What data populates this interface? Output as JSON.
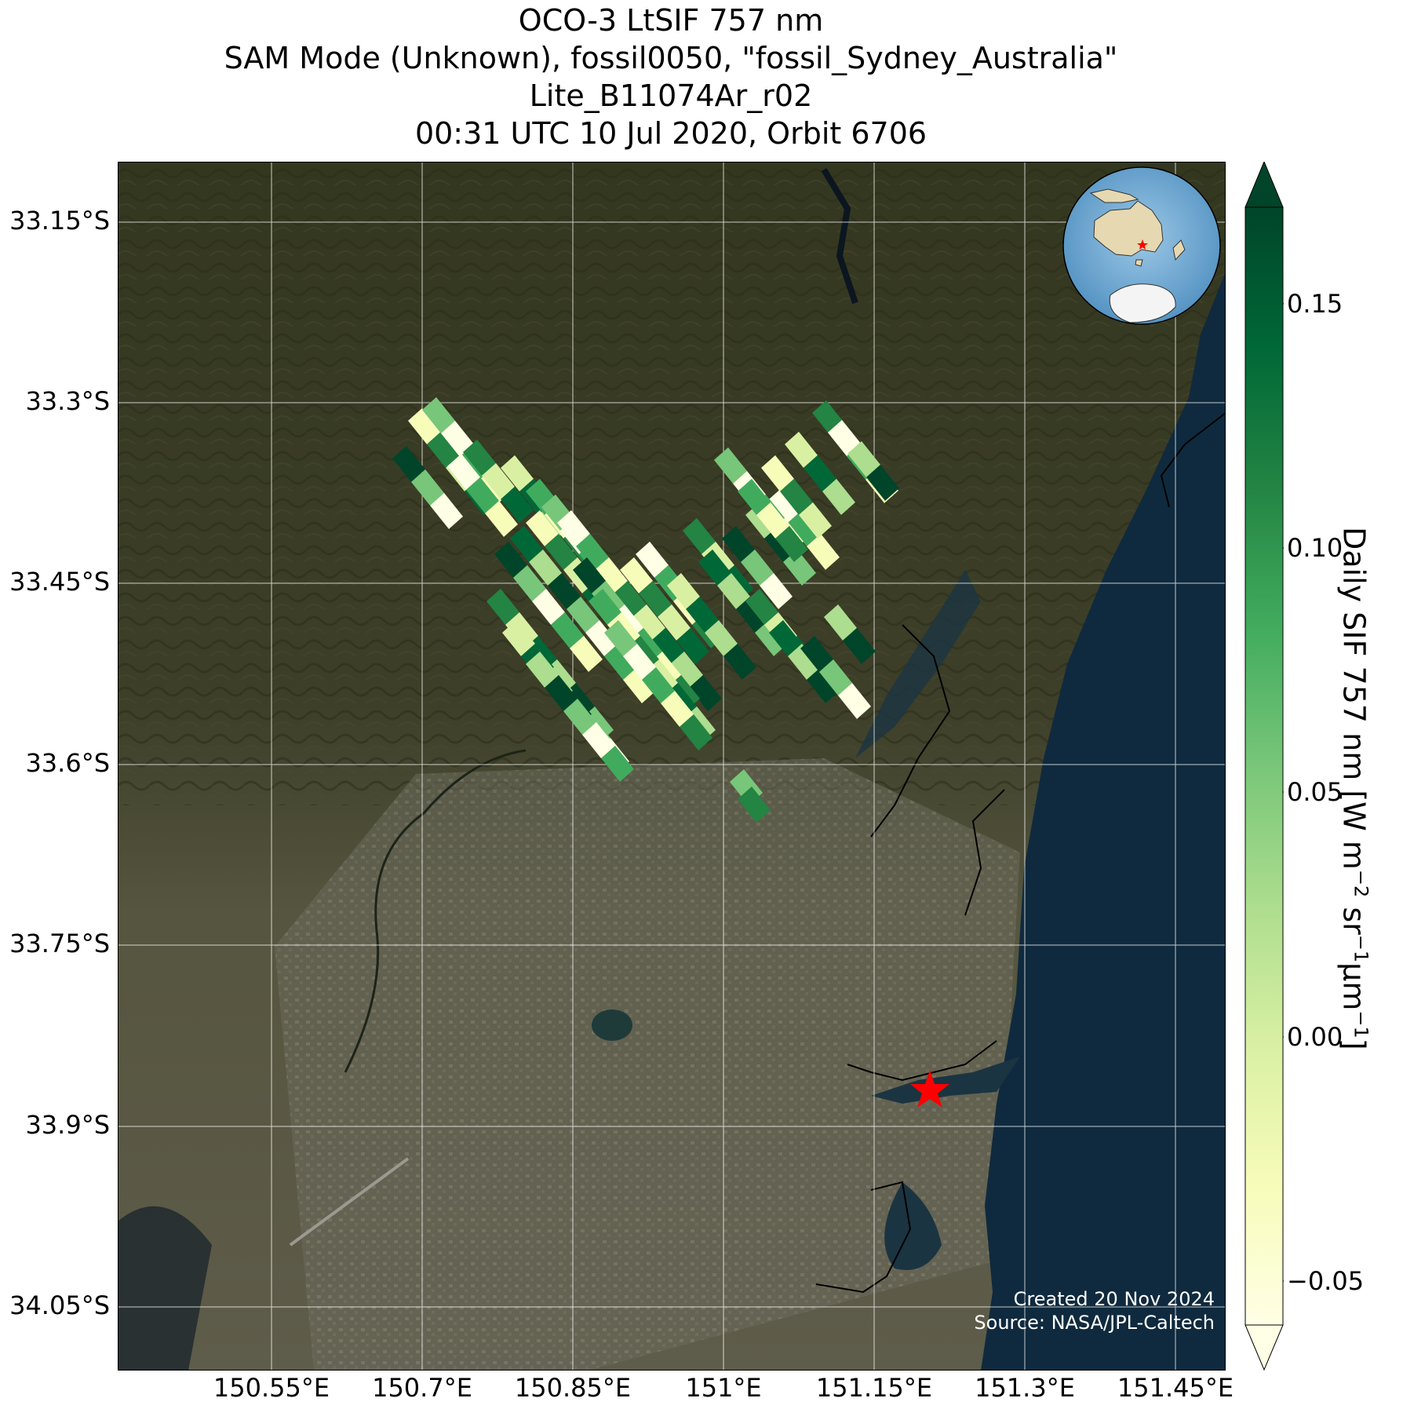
{
  "title": {
    "line1": "OCO-3 LtSIF 757 nm",
    "line2": "SAM Mode (Unknown), fossil0050, \"fossil_Sydney_Australia\"",
    "line3": "Lite_B11074Ar_r02",
    "line4": "00:31 UTC 10 Jul 2020, Orbit 6706"
  },
  "axes": {
    "lat_ticks": [
      "33.15°S",
      "33.3°S",
      "33.45°S",
      "33.6°S",
      "33.75°S",
      "33.9°S",
      "34.05°S"
    ],
    "lon_ticks": [
      "150.55°E",
      "150.7°E",
      "150.85°E",
      "151°E",
      "151.15°E",
      "151.3°E",
      "151.45°E"
    ]
  },
  "colorbar": {
    "ticks": [
      "0.15",
      "0.10",
      "0.05",
      "0.00",
      "−0.05"
    ],
    "label_main": "Daily SIF 757 nm [W m",
    "label_sup1": "−2",
    "label_mid1": " sr",
    "label_sup2": "−1",
    "label_mid2": "µm",
    "label_sup3": "−1",
    "label_end": "]",
    "colormap": "YlGn",
    "range": [
      -0.06,
      0.165
    ]
  },
  "credits": {
    "created": "Created 20 Nov 2024",
    "source": "Source: NASA/JPL-Caltech"
  },
  "map": {
    "basemap": "satellite imagery",
    "target_marker": "red-star",
    "inset": "orthographic globe centered on Australia with red star at Sydney",
    "colors": {
      "ocean": "#0f2a3e",
      "land": "#3b3d28",
      "star": "#ff0000"
    }
  }
}
